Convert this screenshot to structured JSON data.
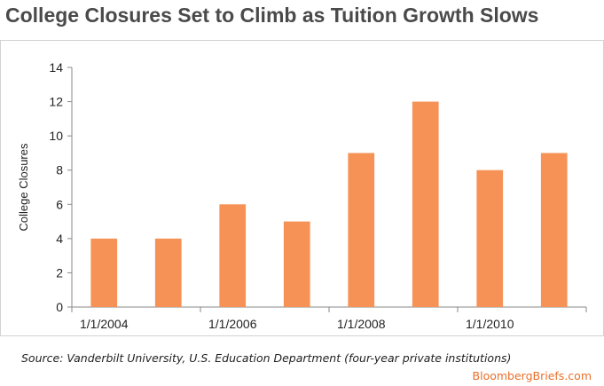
{
  "chart_data": {
    "type": "bar",
    "title": "College Closures Set to Climb as Tuition Growth Slows",
    "ylabel": "College Closures",
    "xlabel": "",
    "categories": [
      "2004",
      "2005",
      "2006",
      "2007",
      "2008",
      "2009",
      "2010",
      "2011"
    ],
    "values": [
      4,
      4,
      6,
      5,
      9,
      12,
      8,
      9
    ],
    "x_tick_labels": [
      "1/1/2004",
      "1/1/2006",
      "1/1/2008",
      "1/1/2010"
    ],
    "y_ticks": [
      0,
      2,
      4,
      6,
      8,
      10,
      12,
      14
    ],
    "ylim": [
      0,
      14
    ],
    "grid": false,
    "legend": "none",
    "bar_color": "#f79256",
    "axis_color": "#888888"
  },
  "source": "Source: Vanderbilt University, U.S. Education Department (four-year private institutions)",
  "brand": "BloombergBriefs.com"
}
